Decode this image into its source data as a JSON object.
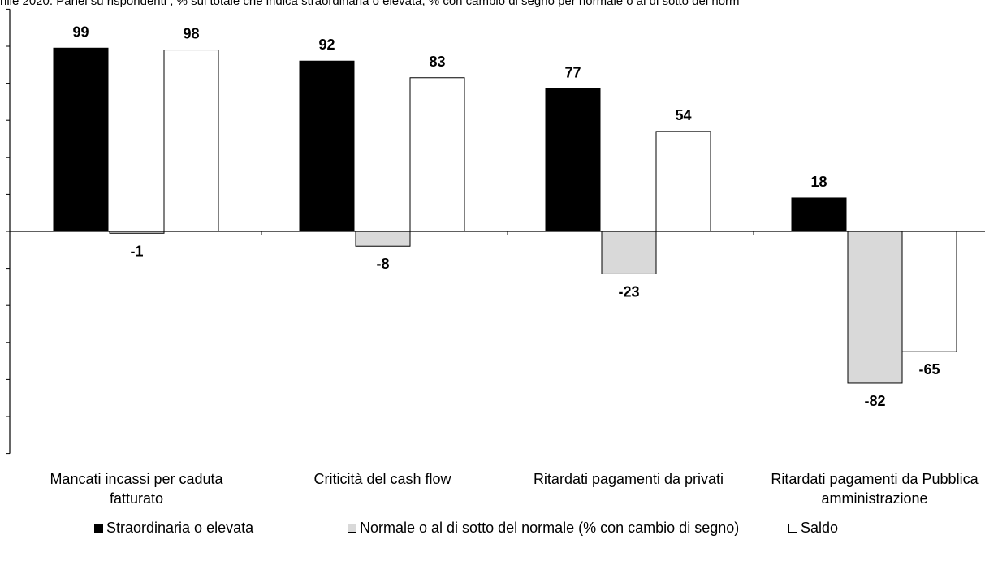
{
  "subtitle": "nile 2020. Panel su rispondenti ; % sul totale che indica straordinaria o elevata, % con cambio di segno per normale o al di sotto del norm",
  "chart_data": {
    "type": "bar",
    "title": "",
    "xlabel": "",
    "ylabel": "",
    "ylim": [
      -120,
      120
    ],
    "grid": false,
    "legend_position": "bottom",
    "categories": [
      [
        "Mancati incassi per caduta",
        "fatturato"
      ],
      [
        "Criticità del cash flow"
      ],
      [
        "Ritardati pagamenti da privati"
      ],
      [
        "Ritardati pagamenti da Pubblica",
        "amministrazione"
      ]
    ],
    "series": [
      {
        "name": "Straordinaria o elevata",
        "values": [
          99,
          92,
          77,
          18
        ],
        "color": "#000000"
      },
      {
        "name": "Normale o al di sotto del normale (% con cambio di segno)",
        "values": [
          -1,
          -8,
          -23,
          -82
        ],
        "color": "#d9d9d9"
      },
      {
        "name": "Saldo",
        "values": [
          98,
          83,
          54,
          -65
        ],
        "color": "#ffffff"
      }
    ]
  }
}
